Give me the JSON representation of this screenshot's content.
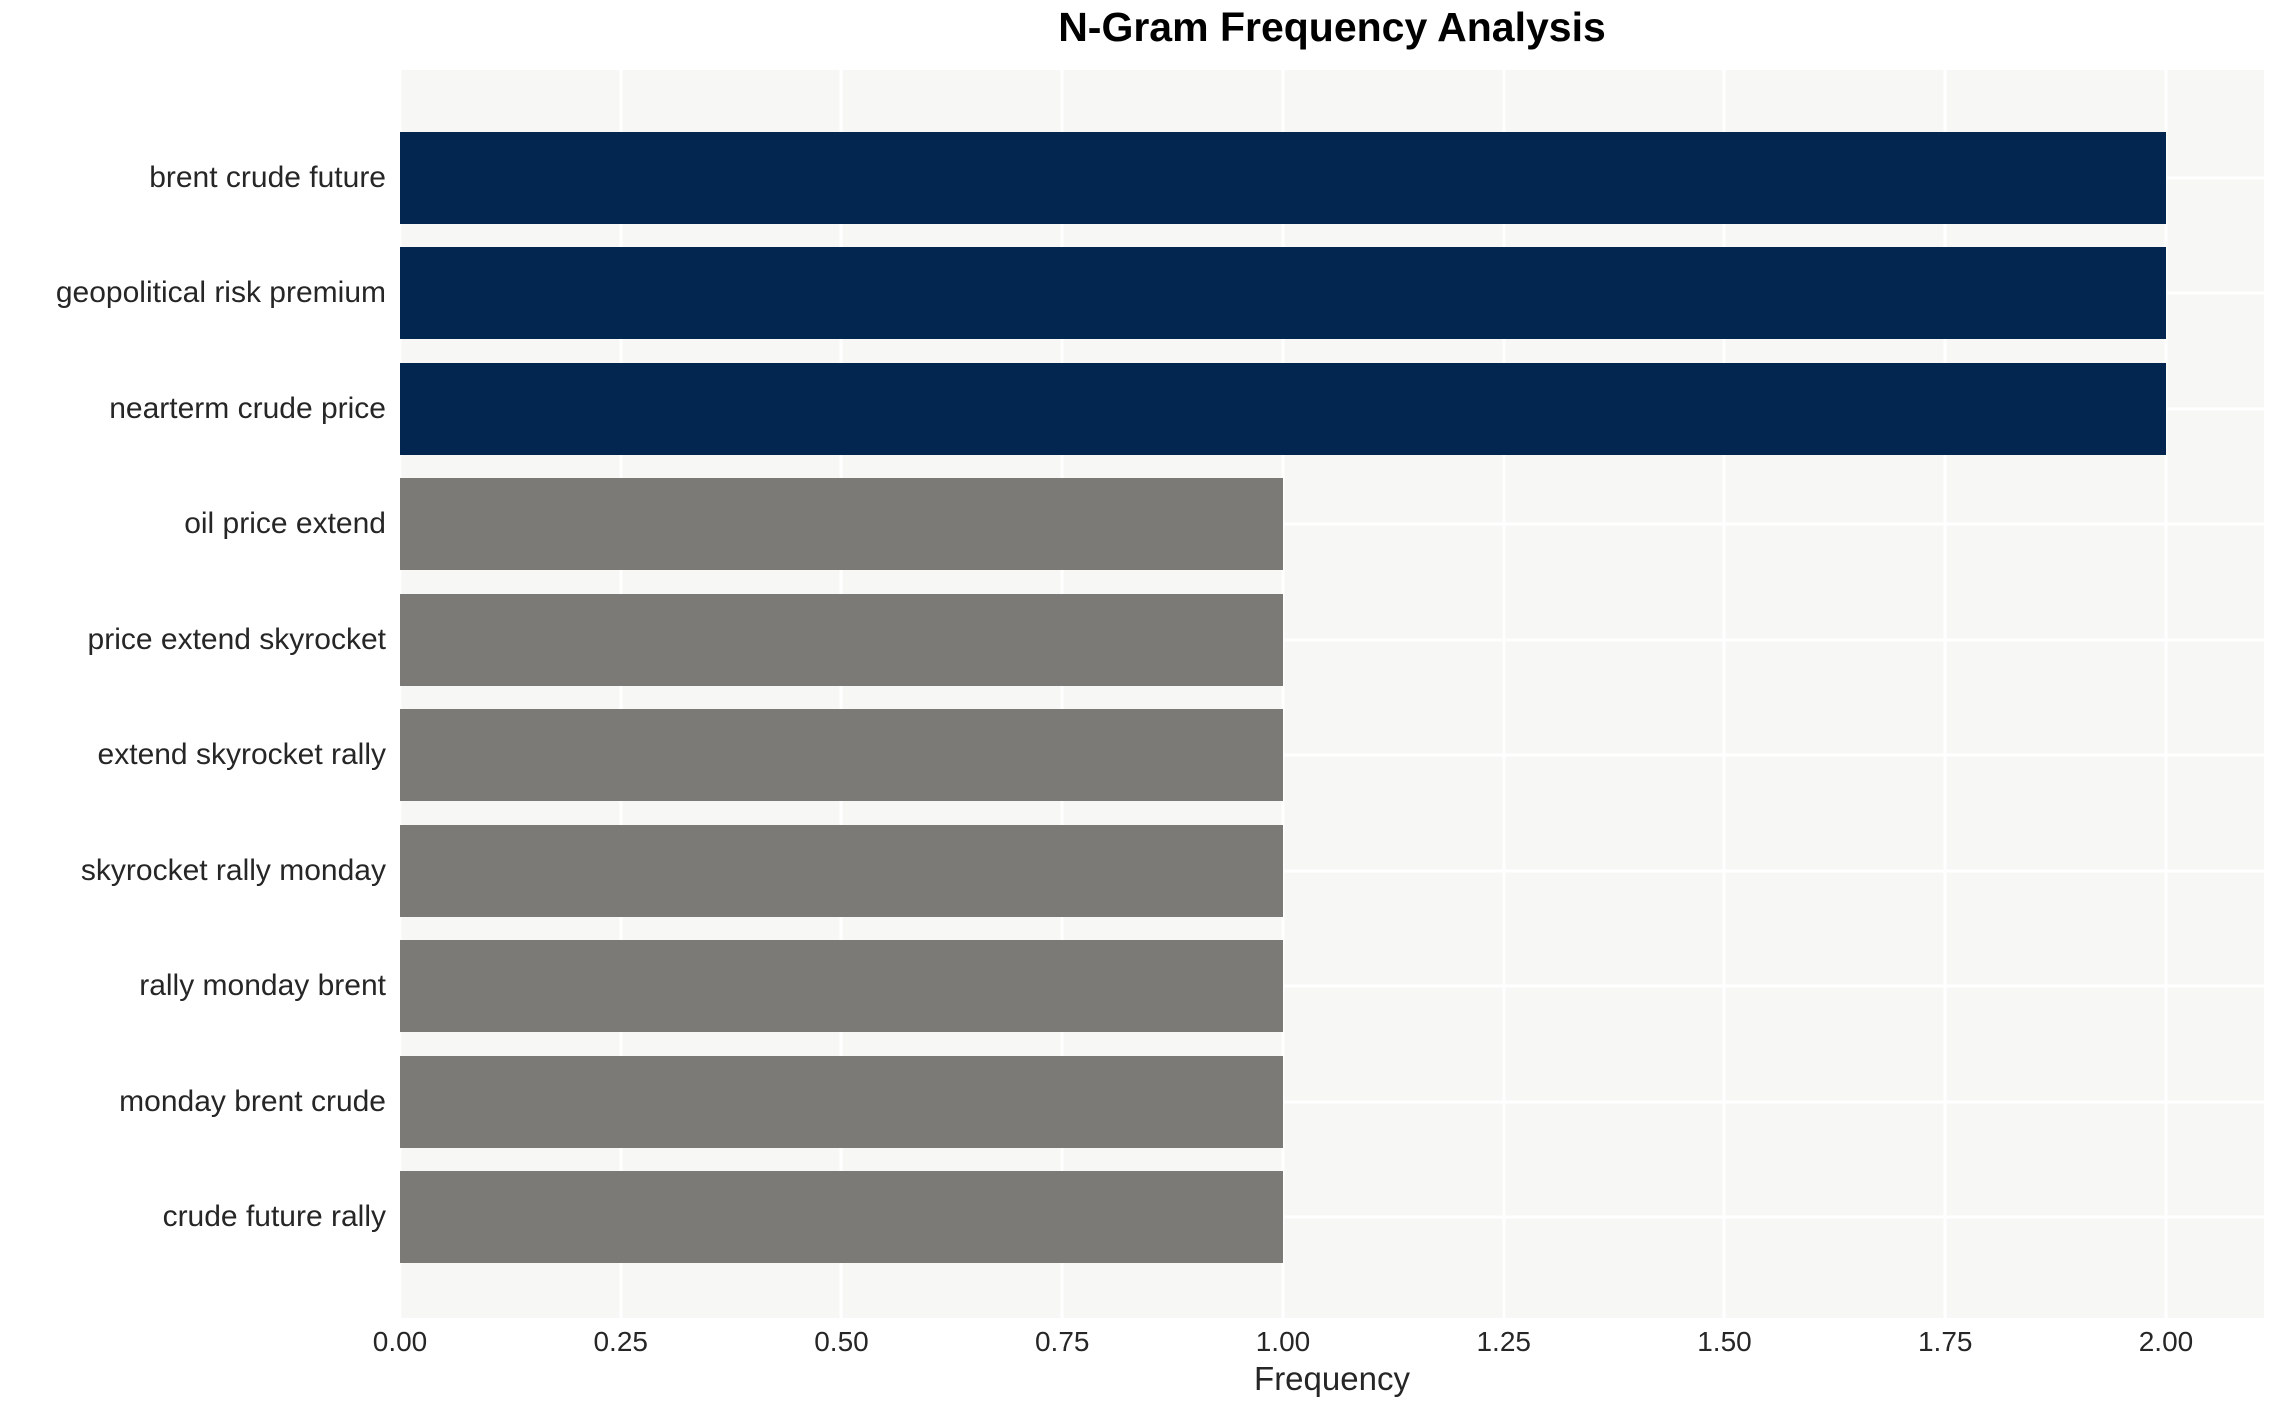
{
  "chart_data": {
    "type": "bar",
    "orientation": "horizontal",
    "title": "N-Gram Frequency Analysis",
    "xlabel": "Frequency",
    "ylabel": "",
    "categories": [
      "brent crude future",
      "geopolitical risk premium",
      "nearterm crude price",
      "oil price extend",
      "price extend skyrocket",
      "extend skyrocket rally",
      "skyrocket rally monday",
      "rally monday brent",
      "monday brent crude",
      "crude future rally"
    ],
    "values": [
      2,
      2,
      2,
      1,
      1,
      1,
      1,
      1,
      1,
      1
    ],
    "bar_colors": [
      "#032650",
      "#032650",
      "#032650",
      "#7b7a76",
      "#7b7a76",
      "#7b7a76",
      "#7b7a76",
      "#7b7a76",
      "#7b7a76",
      "#7b7a76"
    ],
    "xticks": [
      "0.00",
      "0.25",
      "0.50",
      "0.75",
      "1.00",
      "1.25",
      "1.50",
      "1.75",
      "2.00"
    ],
    "xtick_values": [
      0,
      0.25,
      0.5,
      0.75,
      1.0,
      1.25,
      1.5,
      1.75,
      2.0
    ],
    "xlim": [
      0,
      2.111
    ],
    "grid": true,
    "legend": false,
    "colors": {
      "high_freq_bar": "#032650",
      "low_freq_bar": "#7b7a76",
      "plot_background": "#f7f7f5",
      "gridline": "#ffffff",
      "tick_text": "#262626",
      "title_text": "#000000"
    }
  }
}
